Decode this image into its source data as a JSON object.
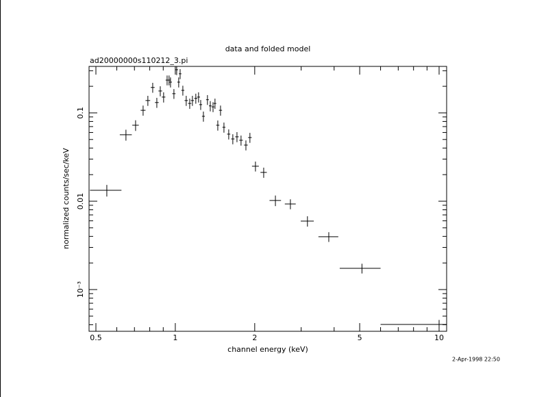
{
  "chart_data": {
    "type": "scatter",
    "title": "data and folded model",
    "subtitle": "ad20000000s110212_3.pi",
    "x_label": "channel energy (keV)",
    "y_label": "normalized counts/sec/keV",
    "timestamp": "2-Apr-1998 22:50",
    "log_x": true,
    "log_y": true,
    "color": "#000000",
    "xlim": [
      0.471,
      10.68
    ],
    "ylim": [
      0.000337,
      0.336
    ],
    "xticks": [
      0.5,
      1,
      2,
      5,
      10
    ],
    "xminorticks": [
      0.6,
      0.7,
      0.8,
      0.9,
      3,
      4,
      6,
      7,
      8,
      9
    ],
    "yticks": [
      0.1,
      0.01,
      {
        "value": 0.001,
        "label": "10⁻³"
      }
    ],
    "yminorticks": [
      0.0004,
      0.0005,
      0.0006,
      0.0007,
      0.0008,
      0.0009,
      0.002,
      0.003,
      0.004,
      0.005,
      0.006,
      0.007,
      0.008,
      0.009,
      0.02,
      0.03,
      0.04,
      0.05,
      0.06,
      0.07,
      0.08,
      0.09,
      0.2,
      0.3
    ],
    "x": [
      0.55,
      0.65,
      0.707,
      0.755,
      0.787,
      0.821,
      0.851,
      0.877,
      0.903,
      0.931,
      0.947,
      0.959,
      0.988,
      1.012,
      1.03,
      1.043,
      1.068,
      1.1,
      1.134,
      1.161,
      1.196,
      1.225,
      1.248,
      1.278,
      1.324,
      1.357,
      1.39,
      1.414,
      1.449,
      1.484,
      1.529,
      1.594,
      1.652,
      1.713,
      1.775,
      1.852,
      1.918,
      2.013,
      2.163,
      2.396,
      2.731,
      3.169,
      3.818,
      5.1,
      10.0
    ],
    "values": [
      0.0133,
      0.0565,
      0.0725,
      0.107,
      0.138,
      0.194,
      0.131,
      0.177,
      0.151,
      0.235,
      0.235,
      0.223,
      0.165,
      0.308,
      0.223,
      0.277,
      0.18,
      0.138,
      0.128,
      0.138,
      0.146,
      0.151,
      0.124,
      0.0915,
      0.141,
      0.12,
      0.117,
      0.128,
      0.0725,
      0.107,
      0.0687,
      0.0575,
      0.0507,
      0.0536,
      0.049,
      0.0432,
      0.0526,
      0.0249,
      0.0212,
      0.0102,
      0.00931,
      0.00596,
      0.00396,
      0.00174,
      0.000403
    ],
    "xerr": [
      0.075,
      0.034,
      0.02,
      0.016,
      0.016,
      0.014,
      0.014,
      0.014,
      0.014,
      0.012,
      0.012,
      0.012,
      0.014,
      0.012,
      0.012,
      0.012,
      0.014,
      0.016,
      0.016,
      0.016,
      0.016,
      0.016,
      0.016,
      0.016,
      0.016,
      0.016,
      0.016,
      0.016,
      0.02,
      0.02,
      0.02,
      0.022,
      0.024,
      0.026,
      0.028,
      0.03,
      0.03,
      0.06,
      0.06,
      0.12,
      0.13,
      0.18,
      0.33,
      0.9,
      4.0
    ],
    "yerr": [
      0.002,
      0.008,
      0.01,
      0.014,
      0.018,
      0.025,
      0.017,
      0.023,
      0.02,
      0.03,
      0.03,
      0.029,
      0.021,
      0.04,
      0.029,
      0.036,
      0.023,
      0.018,
      0.017,
      0.018,
      0.019,
      0.02,
      0.016,
      0.012,
      0.018,
      0.016,
      0.015,
      0.017,
      0.0095,
      0.014,
      0.009,
      0.0075,
      0.0066,
      0.007,
      0.0064,
      0.0056,
      0.0068,
      0.0032,
      0.0028,
      0.0014,
      0.0012,
      0.0008,
      0.0005,
      0.00022,
      5e-05
    ]
  }
}
